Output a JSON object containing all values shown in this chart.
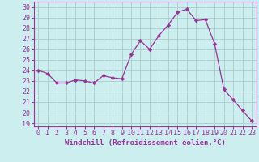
{
  "x": [
    0,
    1,
    2,
    3,
    4,
    5,
    6,
    7,
    8,
    9,
    10,
    11,
    12,
    13,
    14,
    15,
    16,
    17,
    18,
    19,
    20,
    21,
    22,
    23
  ],
  "y": [
    24.0,
    23.7,
    22.8,
    22.8,
    23.1,
    23.0,
    22.8,
    23.5,
    23.3,
    23.2,
    25.5,
    26.8,
    26.0,
    27.3,
    28.3,
    29.5,
    29.8,
    28.7,
    28.8,
    26.5,
    22.2,
    21.2,
    20.2,
    19.2
  ],
  "line_color": "#993399",
  "marker": "D",
  "marker_size": 2.2,
  "bg_color": "#cceeee",
  "grid_color": "#aacccc",
  "ylabel_ticks": [
    19,
    20,
    21,
    22,
    23,
    24,
    25,
    26,
    27,
    28,
    29,
    30
  ],
  "xlabel": "Windchill (Refroidissement éolien,°C)",
  "xlabel_fontsize": 6.5,
  "tick_fontsize": 6.0,
  "ylim": [
    18.7,
    30.5
  ],
  "xlim": [
    -0.5,
    23.5
  ]
}
